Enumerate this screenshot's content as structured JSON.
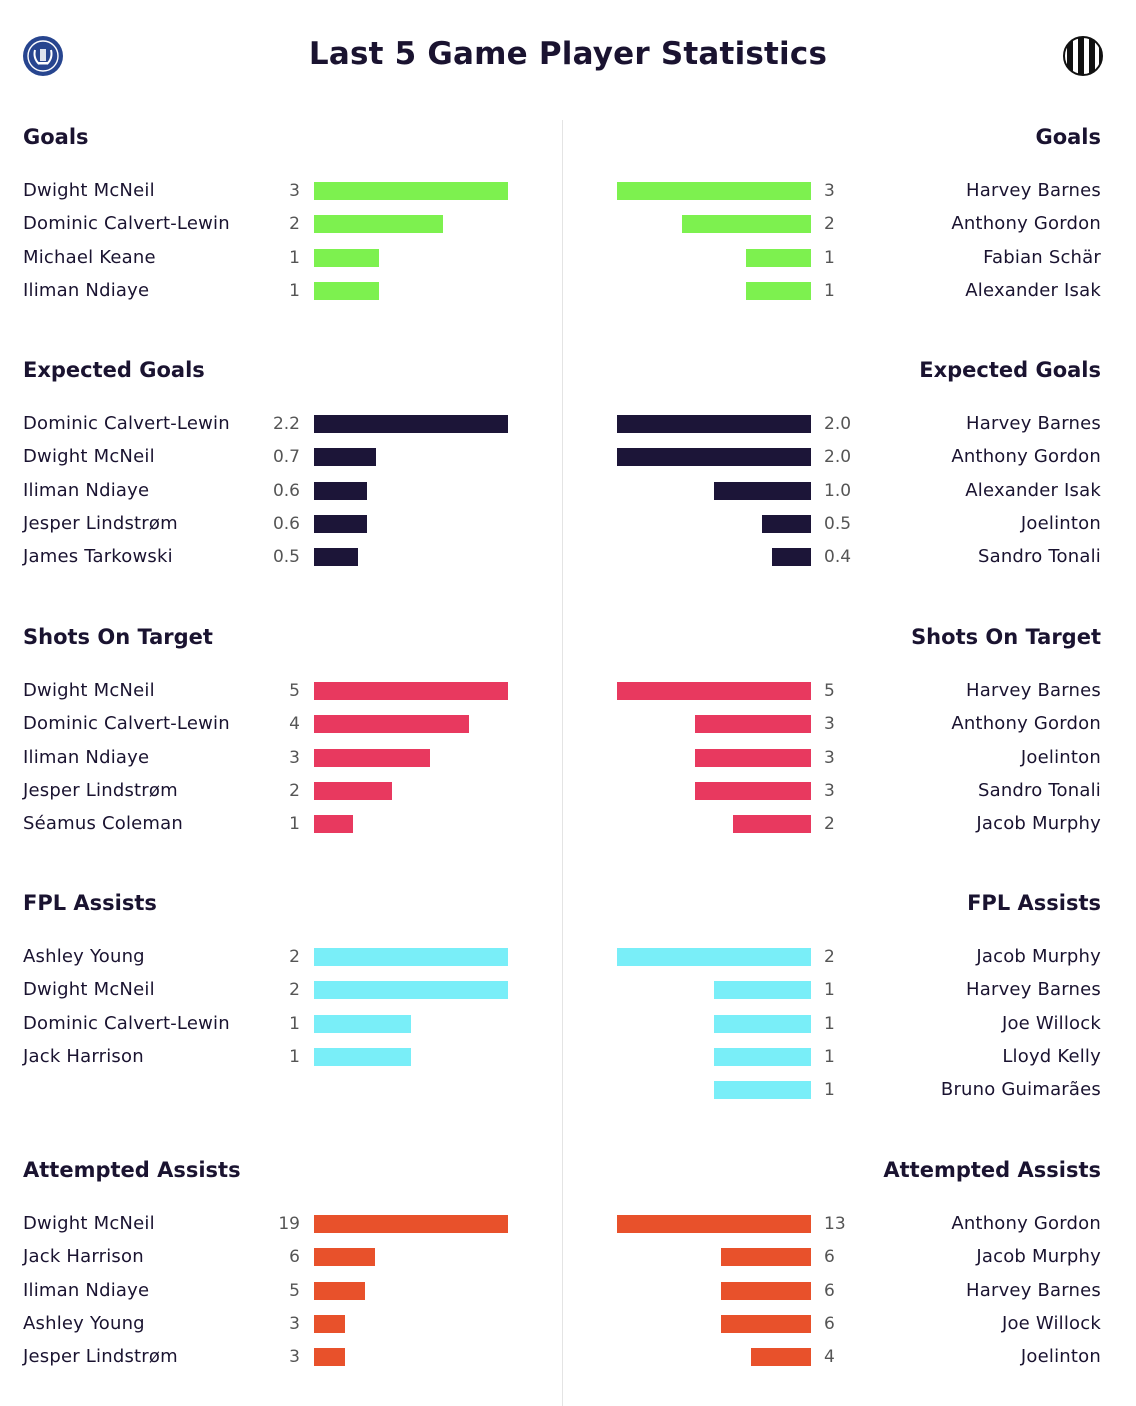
{
  "title": "Last 5 Game Player Statistics",
  "home_crest_icon": "everton-crest-icon",
  "away_crest_icon": "newcastle-crest-icon",
  "colors": {
    "Goals": "#7df14f",
    "Expected Goals": "#1c1538",
    "Shots On Target": "#e8395f",
    "FPL Assists": "#79eef8",
    "Attempted Assists": "#e8512b",
    "text": "#1a1330",
    "value_text": "#555555"
  },
  "chart_data": [
    {
      "type": "bar",
      "title": "Goals",
      "home": {
        "players": [
          "Dwight McNeil",
          "Dominic Calvert-Lewin",
          "Michael Keane",
          "Iliman Ndiaye"
        ],
        "values": [
          3,
          2,
          1,
          1
        ],
        "labels": [
          "3",
          "2",
          "1",
          "1"
        ]
      },
      "away": {
        "players": [
          "Harvey Barnes",
          "Anthony Gordon",
          "Fabian Schär",
          "Alexander Isak"
        ],
        "values": [
          3,
          2,
          1,
          1
        ],
        "labels": [
          "3",
          "2",
          "1",
          "1"
        ]
      }
    },
    {
      "type": "bar",
      "title": "Expected Goals",
      "home": {
        "players": [
          "Dominic Calvert-Lewin",
          "Dwight McNeil",
          "Iliman Ndiaye",
          "Jesper Lindstrøm",
          "James Tarkowski"
        ],
        "values": [
          2.2,
          0.7,
          0.6,
          0.6,
          0.5
        ],
        "labels": [
          "2.2",
          "0.7",
          "0.6",
          "0.6",
          "0.5"
        ]
      },
      "away": {
        "players": [
          "Harvey Barnes",
          "Anthony Gordon",
          "Alexander Isak",
          "Joelinton",
          "Sandro Tonali"
        ],
        "values": [
          2.0,
          2.0,
          1.0,
          0.5,
          0.4
        ],
        "labels": [
          "2.0",
          "2.0",
          "1.0",
          "0.5",
          "0.4"
        ]
      }
    },
    {
      "type": "bar",
      "title": "Shots On Target",
      "home": {
        "players": [
          "Dwight McNeil",
          "Dominic Calvert-Lewin",
          "Iliman Ndiaye",
          "Jesper Lindstrøm",
          "Séamus Coleman"
        ],
        "values": [
          5,
          4,
          3,
          2,
          1
        ],
        "labels": [
          "5",
          "4",
          "3",
          "2",
          "1"
        ]
      },
      "away": {
        "players": [
          "Harvey Barnes",
          "Anthony Gordon",
          "Joelinton",
          "Sandro Tonali",
          "Jacob Murphy"
        ],
        "values": [
          5,
          3,
          3,
          3,
          2
        ],
        "labels": [
          "5",
          "3",
          "3",
          "3",
          "2"
        ]
      }
    },
    {
      "type": "bar",
      "title": "FPL Assists",
      "home": {
        "players": [
          "Ashley Young",
          "Dwight McNeil",
          "Dominic Calvert-Lewin",
          "Jack Harrison"
        ],
        "values": [
          2,
          2,
          1,
          1
        ],
        "labels": [
          "2",
          "2",
          "1",
          "1"
        ]
      },
      "away": {
        "players": [
          "Jacob Murphy",
          "Harvey Barnes",
          "Joe Willock",
          "Lloyd Kelly",
          "Bruno Guimarães"
        ],
        "values": [
          2,
          1,
          1,
          1,
          1
        ],
        "labels": [
          "2",
          "1",
          "1",
          "1",
          "1"
        ]
      }
    },
    {
      "type": "bar",
      "title": "Attempted Assists",
      "home": {
        "players": [
          "Dwight McNeil",
          "Jack Harrison",
          "Iliman Ndiaye",
          "Ashley Young",
          "Jesper Lindstrøm"
        ],
        "values": [
          19,
          6,
          5,
          3,
          3
        ],
        "labels": [
          "19",
          "6",
          "5",
          "3",
          "3"
        ]
      },
      "away": {
        "players": [
          "Anthony Gordon",
          "Jacob Murphy",
          "Harvey Barnes",
          "Joe Willock",
          "Joelinton"
        ],
        "values": [
          13,
          6,
          6,
          6,
          4
        ],
        "labels": [
          "13",
          "6",
          "6",
          "6",
          "4"
        ]
      }
    }
  ]
}
